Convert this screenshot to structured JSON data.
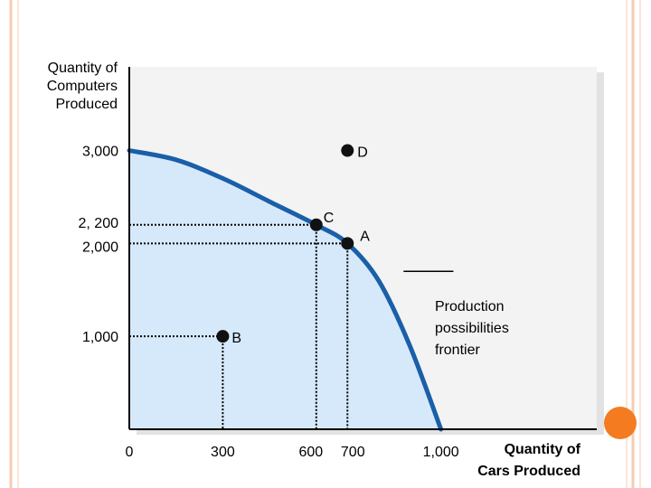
{
  "chart_data": {
    "type": "line",
    "ylabel": "Quantity of\nComputers\nProduced",
    "xlabel": "Quantity of\nCars Produced",
    "xlim": [
      0,
      1500
    ],
    "ylim": [
      0,
      3900
    ],
    "x_ticks": [
      {
        "value": 0,
        "label": "0"
      },
      {
        "value": 300,
        "label": "300"
      },
      {
        "value": 600,
        "label": "600"
      },
      {
        "value": 700,
        "label": "700"
      },
      {
        "value": 1000,
        "label": "1,000"
      }
    ],
    "y_ticks": [
      {
        "value": 3000,
        "label": "3,000"
      },
      {
        "value": 2200,
        "label": "2, 200"
      },
      {
        "value": 2000,
        "label": "2,000"
      },
      {
        "value": 1000,
        "label": "1,000"
      }
    ],
    "series": [
      {
        "name": "Production possibilities frontier",
        "x": [
          0,
          150,
          300,
          450,
          600,
          700,
          800,
          900,
          1000
        ],
        "y": [
          3000,
          2900,
          2700,
          2450,
          2200,
          2000,
          1600,
          900,
          0
        ]
      }
    ],
    "points": [
      {
        "label": "D",
        "x": 700,
        "y": 3000
      },
      {
        "label": "C",
        "x": 600,
        "y": 2200
      },
      {
        "label": "A",
        "x": 700,
        "y": 2000
      },
      {
        "label": "B",
        "x": 300,
        "y": 1000
      }
    ],
    "annotation": "Production\npossibilities\nfrontier",
    "colors": {
      "curve": "#1a5fa8",
      "fill": "#d6e9fb",
      "plot_background": "#f3f3f3",
      "point": "#111111",
      "frame": "#f6cdb2",
      "accent": "#f47b20"
    },
    "grid": false
  }
}
